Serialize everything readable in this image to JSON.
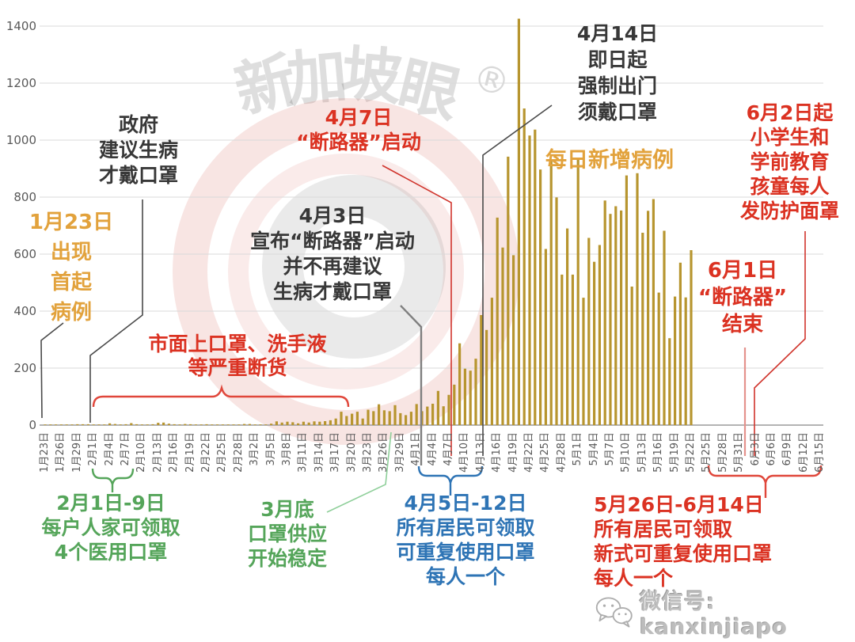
{
  "watermark": {
    "brand_chars": [
      "新",
      "加",
      "坡",
      "眼"
    ],
    "registered": "®"
  },
  "footer": {
    "wechat_label": "微信号: kanxinjiapo"
  },
  "colors": {
    "bar": "#B7952F",
    "orange": "#E2A23C",
    "red": "#DB3222",
    "green": "#55A55A",
    "blue": "#2E74B5",
    "black_text": "#383838",
    "axis_text": "#595959",
    "gridline": "#D9D9D9"
  },
  "annotations": {
    "first_case": {
      "color": "orange",
      "lines": [
        "1月23日",
        "出现",
        "首起",
        "病例"
      ]
    },
    "govt_advice": {
      "color": "black",
      "lines": [
        "政府",
        "建议生病",
        "才戴口罩"
      ]
    },
    "shortage": {
      "color": "red",
      "lines": [
        "市面上口罩、洗手液",
        "等严重断货"
      ]
    },
    "cb_start": {
      "color": "red",
      "lines": [
        "4月7日",
        "“断路器”启动"
      ]
    },
    "cb_announce": {
      "color": "black",
      "lines": [
        "4月3日",
        "宣布“断路器”启动",
        "并不再建议",
        "生病才戴口罩"
      ]
    },
    "mask_mandatory": {
      "color": "black",
      "lines": [
        "4月14日",
        "即日起",
        "强制出门",
        "须戴口罩"
      ]
    },
    "series_label": {
      "color": "orange",
      "lines": [
        "每日新增病例"
      ]
    },
    "face_shield": {
      "color": "red",
      "lines": [
        "6月2日起",
        "小学生和",
        "学前教育",
        "孩童每人",
        "发防护面罩"
      ]
    },
    "cb_end": {
      "color": "red",
      "lines": [
        "6月1日",
        "“断路器”",
        "结束"
      ]
    },
    "feb_masks": {
      "color": "green",
      "lines": [
        "2月1日-9日",
        "每户人家可领取",
        "4个医用口罩"
      ]
    },
    "march_supply": {
      "color": "green",
      "lines": [
        "3月底",
        "口罩供应",
        "开始稳定"
      ]
    },
    "april_masks": {
      "color": "blue",
      "lines": [
        "4月5日-12日",
        "所有居民可领取",
        "可重复使用口罩",
        "每人一个"
      ]
    },
    "may_masks": {
      "color": "red",
      "lines": [
        "5月26日-6月14日",
        "所有居民可领取",
        "新式可重复使用口罩",
        "每人一个"
      ]
    }
  },
  "chart_data": {
    "type": "bar",
    "title": "",
    "xlabel": "",
    "ylabel": "",
    "grid": true,
    "ylim": [
      0,
      1400
    ],
    "y_ticks": [
      0,
      200,
      400,
      600,
      800,
      1000,
      1200,
      1400
    ],
    "bar_color": "#B7952F",
    "x_axis_start": "1月23日",
    "x_axis_end": "6月15日",
    "data_start_date": "1月23日",
    "data_end_date": "5月22日",
    "x_tick_labels": [
      "1月23日",
      "1月26日",
      "1月29日",
      "2月1日",
      "2月4日",
      "2月7日",
      "2月10日",
      "2月13日",
      "2月16日",
      "2月19日",
      "2月22日",
      "2月25日",
      "2月28日",
      "3月2日",
      "3月5日",
      "3月8日",
      "3月11日",
      "3月14日",
      "3月17日",
      "3月20日",
      "3月23日",
      "3月26日",
      "3月29日",
      "4月1日",
      "4月4日",
      "4月7日",
      "4月10日",
      "4月13日",
      "4月16日",
      "4月19日",
      "4月22日",
      "4月25日",
      "4月28日",
      "5月1日",
      "5月4日",
      "5月7日",
      "5月10日",
      "5月13日",
      "5月16日",
      "5月19日",
      "5月22日",
      "5月25日",
      "5月28日",
      "5月31日",
      "6月3日",
      "6月6日",
      "6月9日",
      "6月12日",
      "6月15日"
    ],
    "series": [
      {
        "name": "每日新增病例",
        "values": [
          1,
          2,
          1,
          0,
          1,
          2,
          3,
          3,
          3,
          2,
          0,
          0,
          6,
          4,
          2,
          3,
          7,
          3,
          2,
          2,
          3,
          8,
          9,
          5,
          3,
          2,
          4,
          3,
          1,
          1,
          3,
          1,
          1,
          1,
          2,
          2,
          2,
          4,
          4,
          2,
          2,
          2,
          5,
          13,
          9,
          12,
          10,
          6,
          12,
          9,
          13,
          12,
          14,
          17,
          23,
          47,
          32,
          40,
          47,
          23,
          54,
          49,
          73,
          52,
          49,
          70,
          42,
          35,
          47,
          74,
          49,
          65,
          75,
          120,
          66,
          106,
          142,
          287,
          198,
          191,
          233,
          386,
          334,
          447,
          728,
          623,
          942,
          596,
          1426,
          1111,
          1016,
          1037,
          897,
          618,
          931,
          799,
          528,
          690,
          528,
          932,
          447,
          657,
          573,
          632,
          788,
          741,
          768,
          753,
          876,
          486,
          884,
          675,
          752,
          793,
          465,
          682,
          305,
          451,
          570,
          448,
          614
        ]
      }
    ]
  }
}
